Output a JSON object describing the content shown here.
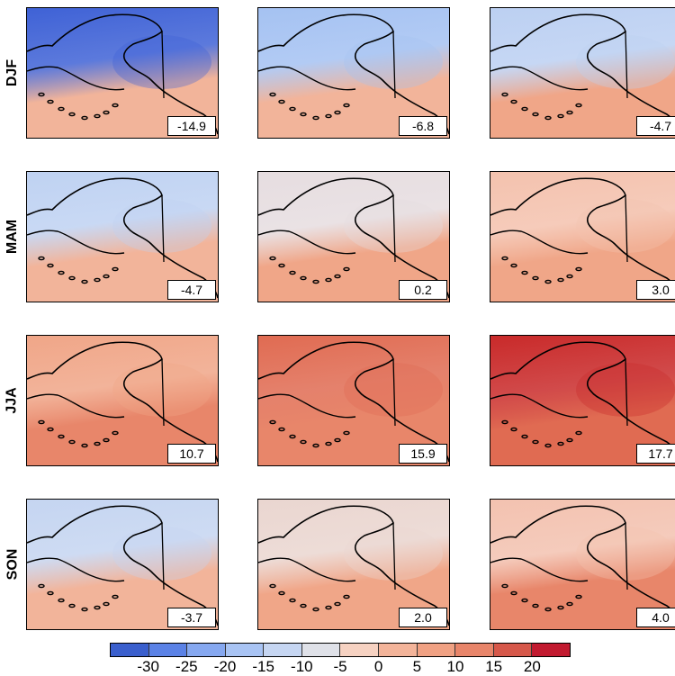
{
  "rows": [
    {
      "label": "DJF",
      "values": [
        "-14.9",
        "-6.8",
        "-4.7"
      ]
    },
    {
      "label": "MAM",
      "values": [
        "-4.7",
        "0.2",
        "3.0"
      ]
    },
    {
      "label": "JJA",
      "values": [
        "10.7",
        "15.9",
        "17.7"
      ]
    },
    {
      "label": "SON",
      "values": [
        "-3.7",
        "2.0",
        "4.0"
      ]
    }
  ],
  "panel_tints": [
    [
      [
        "#3f62d6",
        "#f2b49a"
      ],
      [
        "#a5c2f2",
        "#f2b49a"
      ],
      [
        "#bcd0f2",
        "#f0a688"
      ]
    ],
    [
      [
        "#bfd2f2",
        "#f2b49a"
      ],
      [
        "#e6dde0",
        "#f0a688"
      ],
      [
        "#f4c2ae",
        "#f0a688"
      ]
    ],
    [
      [
        "#f0a688",
        "#e8866a"
      ],
      [
        "#e06b52",
        "#e8866a"
      ],
      [
        "#c92a2a",
        "#e06b52"
      ]
    ],
    [
      [
        "#c5d5f1",
        "#f2b49a"
      ],
      [
        "#ead6d0",
        "#f0a688"
      ],
      [
        "#f3c2b0",
        "#e8866a"
      ]
    ]
  ],
  "colorbar": {
    "colors": [
      "#3a5fcd",
      "#5b82e6",
      "#86a8f0",
      "#a9c4f4",
      "#c6d6f2",
      "#dfe1e8",
      "#f6d2c2",
      "#f3b49a",
      "#f0a183",
      "#e8856a",
      "#d6584a",
      "#c21a30"
    ],
    "ticks": [
      "-30",
      "-25",
      "-20",
      "-15",
      "-10",
      "-5",
      "0",
      "5",
      "10",
      "15",
      "20"
    ]
  }
}
